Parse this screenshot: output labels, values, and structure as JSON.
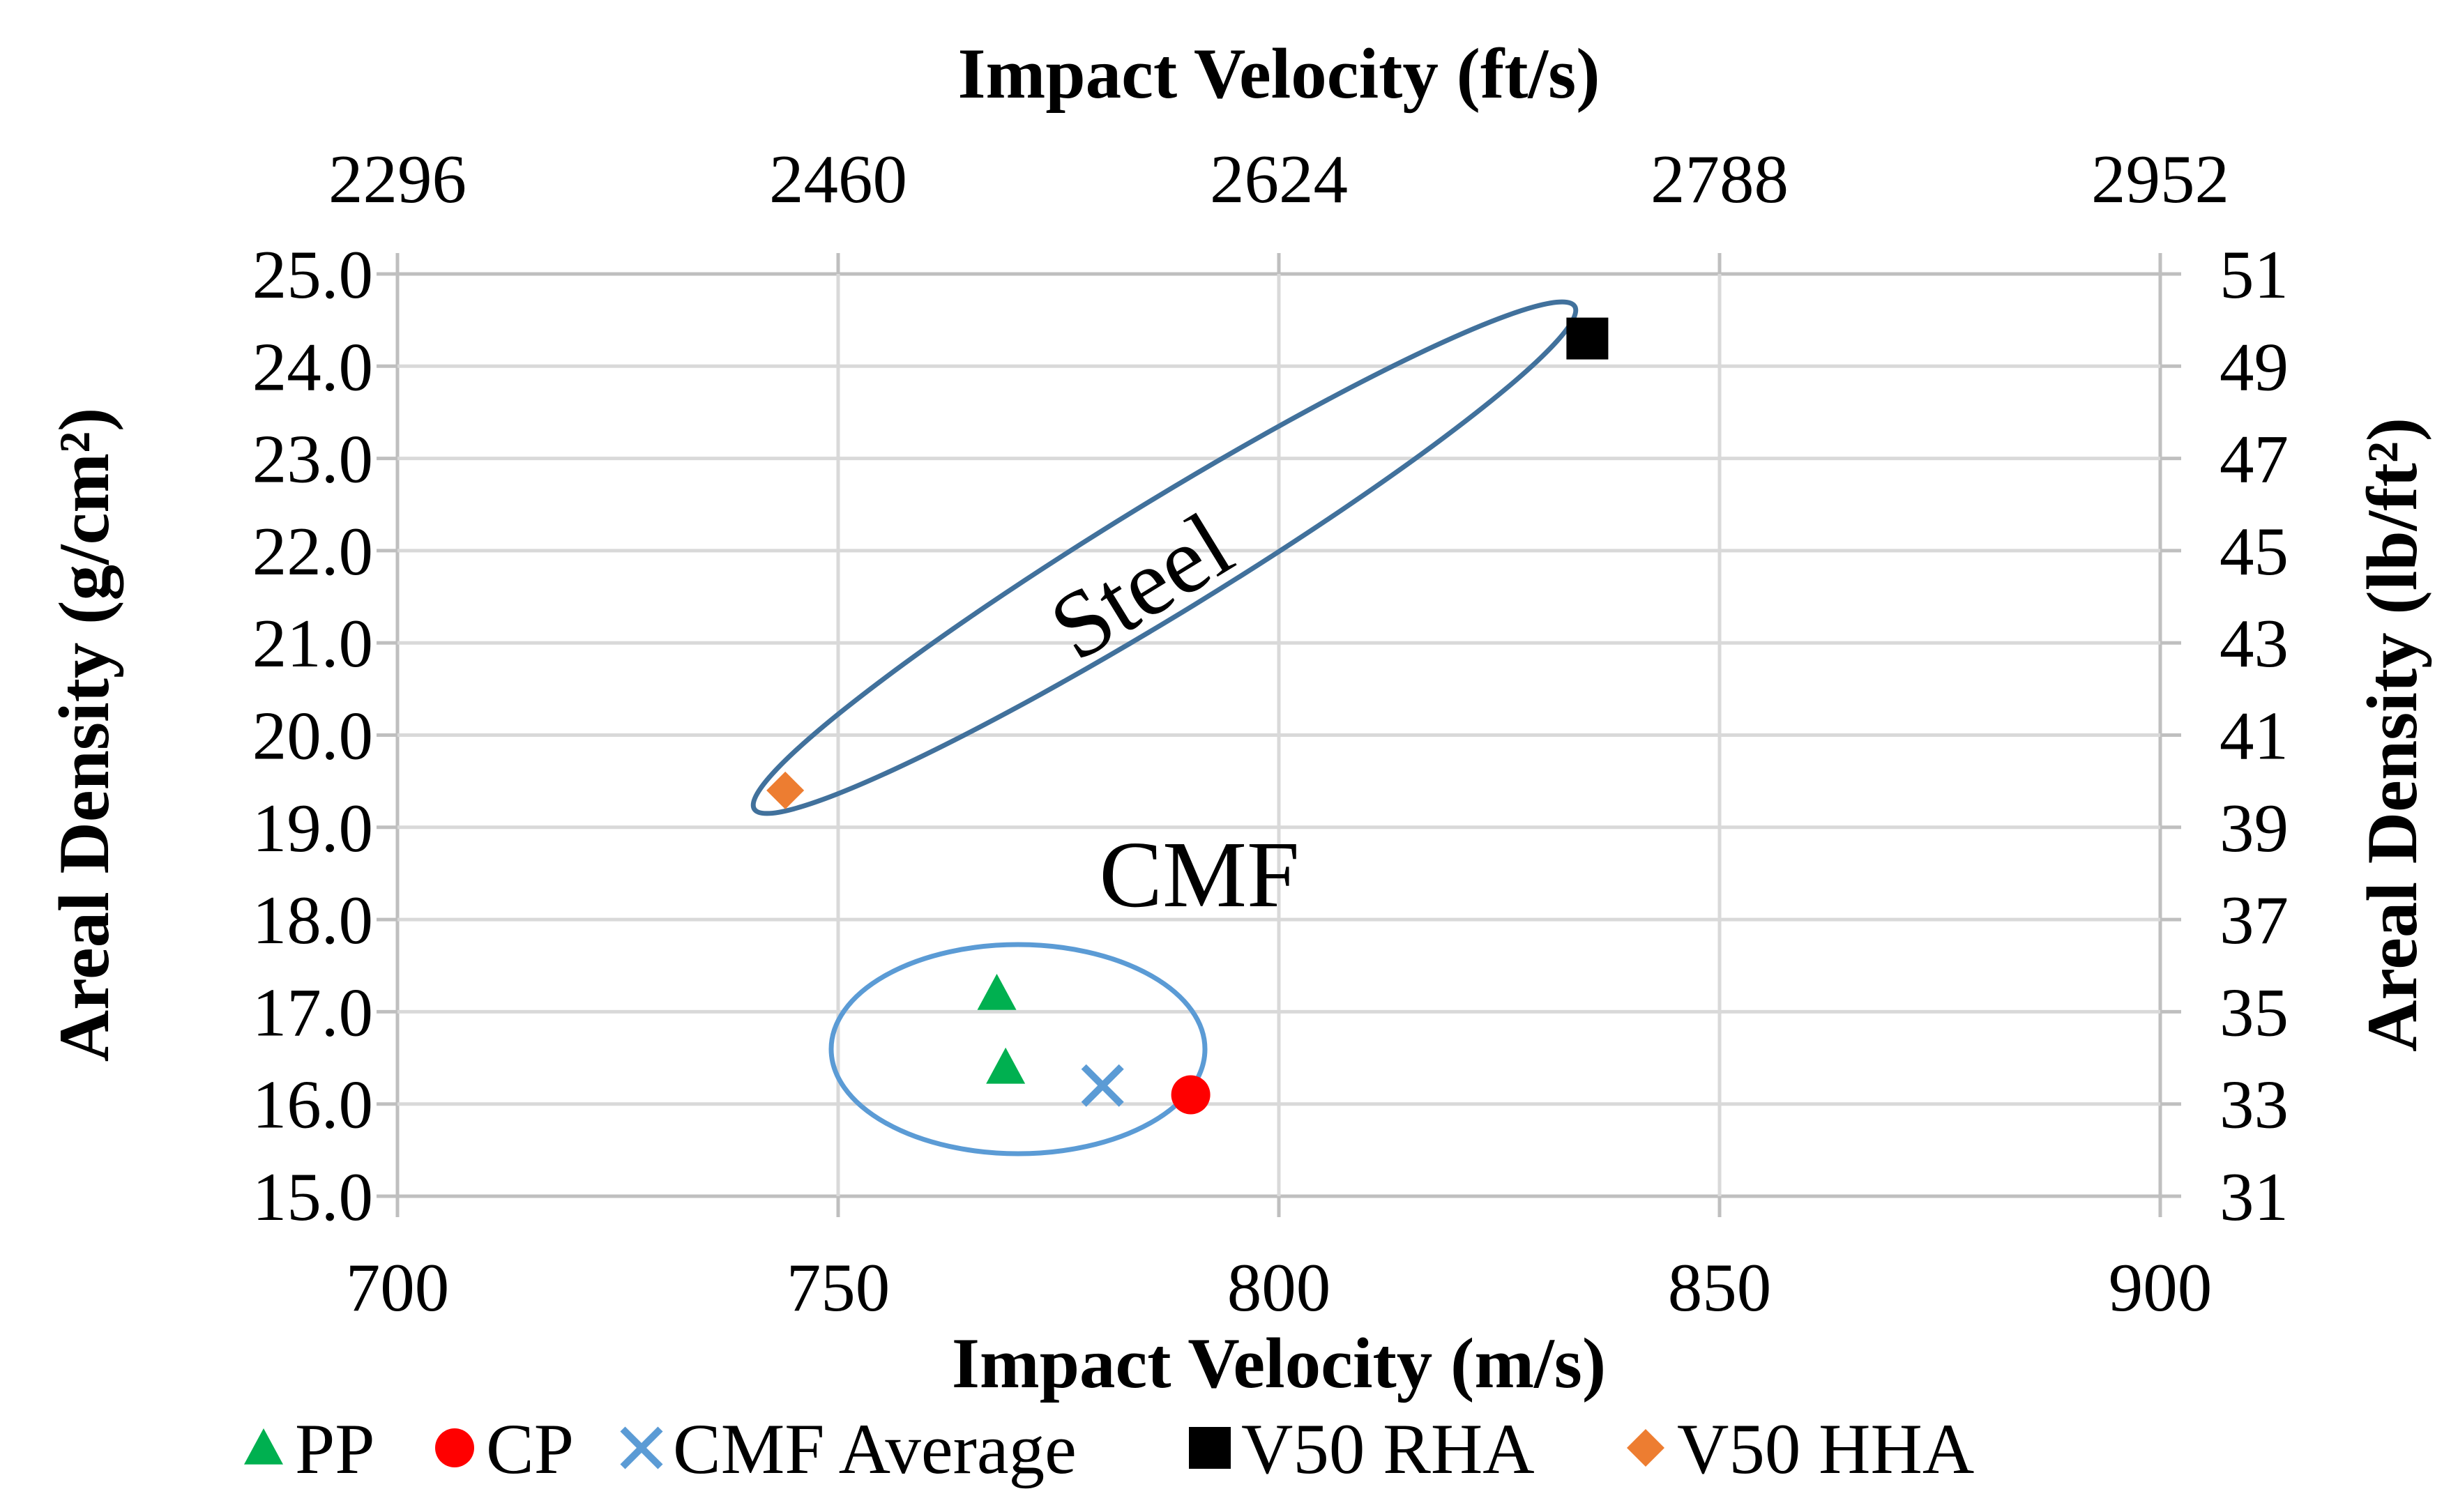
{
  "chart_data": {
    "type": "scatter",
    "title": "",
    "xlabel": "Impact Velocity (m/s)",
    "x2label": "Impact Velocity (ft/s)",
    "ylabel": "Areal Density (g/cm²)",
    "y2label": "Areal Density (lb/ft²)",
    "xlim": [
      700,
      900
    ],
    "ylim": [
      15.0,
      25.0
    ],
    "x2lim": [
      2296,
      2952
    ],
    "y2lim": [
      31,
      51
    ],
    "xticks": [
      "700",
      "750",
      "800",
      "850",
      "900"
    ],
    "yticks": [
      "15.0",
      "16.0",
      "17.0",
      "18.0",
      "19.0",
      "20.0",
      "21.0",
      "22.0",
      "23.0",
      "24.0",
      "25.0"
    ],
    "x2ticks": [
      "2296",
      "2460",
      "2624",
      "2788",
      "2952"
    ],
    "y2ticks": [
      "31",
      "33",
      "35",
      "37",
      "39",
      "41",
      "43",
      "45",
      "47",
      "49",
      "51"
    ],
    "grid": true,
    "legend_position": "bottom",
    "series": [
      {
        "name": "PP",
        "marker": "triangle",
        "color": "#00b050",
        "points": [
          {
            "x": 768,
            "y": 17.2
          },
          {
            "x": 769,
            "y": 16.4
          }
        ]
      },
      {
        "name": "CP",
        "marker": "circle",
        "color": "#ff0000",
        "points": [
          {
            "x": 790,
            "y": 16.1
          }
        ]
      },
      {
        "name": "CMF Average",
        "marker": "x",
        "color": "#5b9bd5",
        "points": [
          {
            "x": 780,
            "y": 16.2
          }
        ]
      },
      {
        "name": "V50 RHA",
        "marker": "square",
        "color": "#000000",
        "points": [
          {
            "x": 835,
            "y": 24.3
          }
        ]
      },
      {
        "name": "V50 HHA",
        "marker": "diamond",
        "color": "#ed7d31",
        "points": [
          {
            "x": 744,
            "y": 19.4
          }
        ]
      }
    ],
    "annotations": [
      {
        "text": "Steel",
        "color": "#41719c"
      },
      {
        "text": "CMF",
        "color": "#5b9bd5"
      }
    ]
  }
}
